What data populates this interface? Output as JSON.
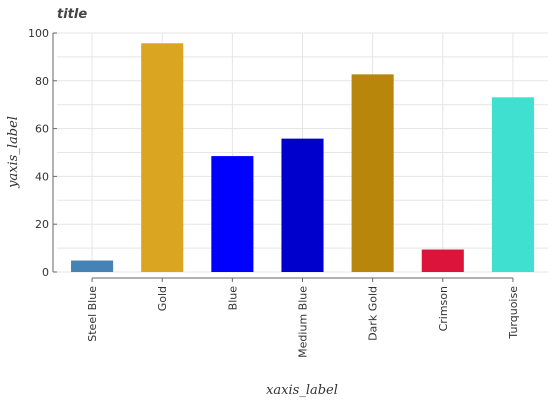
{
  "chart_data": {
    "type": "bar",
    "title": "title",
    "xlabel": "xaxis_label",
    "ylabel": "yaxis_label",
    "categories": [
      "Steel Blue",
      "Gold",
      "Blue",
      "Medium Blue",
      "Dark Gold",
      "Crimson",
      "Turquoise"
    ],
    "values": [
      4.8,
      95.7,
      48.5,
      55.8,
      82.7,
      9.4,
      73.1
    ],
    "colors": [
      "#4682b4",
      "#daa520",
      "#0000ff",
      "#0000cd",
      "#b8860b",
      "#dc143c",
      "#40e0d0"
    ],
    "ylim": [
      0,
      100
    ],
    "yticks": [
      0,
      20,
      40,
      60,
      80,
      100
    ],
    "grid": true,
    "legend": "none"
  }
}
